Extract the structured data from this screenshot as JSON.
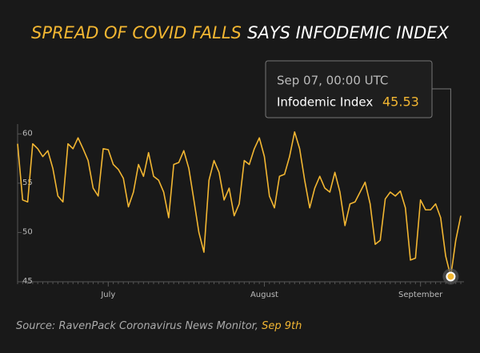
{
  "chart_data": {
    "type": "line",
    "title_highlight": "SPREAD OF COVID FALLS",
    "title": "SAYS INFODEMIC INDEX",
    "source": "Source: RavenPack Coronavirus News Monitor, ",
    "source_date": "Sep 9th",
    "categories": [
      null,
      null,
      null,
      null,
      null,
      null,
      null,
      null,
      null,
      null,
      null,
      null,
      null,
      null,
      null,
      null,
      null,
      null,
      "July",
      null,
      null,
      null,
      null,
      null,
      null,
      null,
      null,
      null,
      null,
      null,
      null,
      null,
      null,
      null,
      null,
      null,
      null,
      null,
      null,
      null,
      null,
      null,
      null,
      null,
      null,
      null,
      null,
      null,
      null,
      "August",
      null,
      null,
      null,
      null,
      null,
      null,
      null,
      null,
      null,
      null,
      null,
      null,
      null,
      null,
      null,
      null,
      null,
      null,
      null,
      null,
      null,
      null,
      null,
      null,
      null,
      null,
      null,
      null,
      null,
      null,
      "September",
      null,
      null,
      null,
      null,
      null,
      null,
      null,
      null
    ],
    "series": [
      {
        "name": "Infodemic Index",
        "color": "#f2b632",
        "values": [
          59.0,
          53.3,
          53.1,
          59.0,
          58.5,
          57.7,
          58.3,
          56.5,
          53.7,
          53.1,
          59.0,
          58.5,
          59.6,
          58.5,
          57.3,
          54.5,
          53.7,
          58.5,
          58.4,
          56.9,
          56.4,
          55.5,
          52.6,
          54.1,
          56.9,
          55.7,
          58.1,
          55.7,
          55.3,
          54.1,
          51.5,
          56.9,
          57.1,
          58.3,
          56.5,
          53.3,
          50.0,
          48.0,
          55.3,
          57.3,
          56.1,
          53.3,
          54.5,
          51.7,
          52.9,
          57.3,
          56.9,
          58.5,
          59.6,
          57.7,
          53.7,
          52.5,
          55.7,
          55.9,
          57.7,
          60.2,
          58.5,
          55.3,
          52.5,
          54.5,
          55.7,
          54.5,
          54.1,
          56.1,
          54.1,
          50.7,
          52.9,
          53.1,
          54.1,
          55.1,
          52.9,
          48.8,
          49.2,
          53.4,
          54.1,
          53.7,
          54.2,
          52.5,
          47.2,
          47.4,
          53.3,
          52.3,
          52.3,
          52.9,
          51.5,
          47.6,
          45.53,
          49.2,
          51.7
        ]
      }
    ],
    "tooltip": {
      "title": "Sep 07, 00:00 UTC",
      "value": 45.53
    },
    "ylim": [
      45,
      61
    ],
    "yticks": [
      45,
      50,
      55,
      60
    ]
  }
}
